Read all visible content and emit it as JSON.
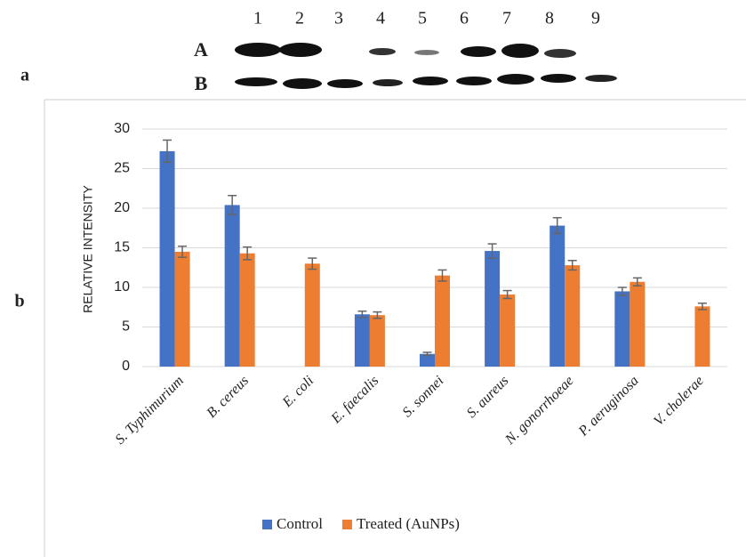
{
  "figure": {
    "panel_labels": [
      "a",
      "b"
    ],
    "lanes": [
      "1",
      "2",
      "3",
      "4",
      "5",
      "6",
      "7",
      "8",
      "9"
    ],
    "rows": [
      "A",
      "B"
    ]
  },
  "chart_data": {
    "type": "bar",
    "y_label": "RELATIVE INTENSITY",
    "categories": [
      "S. Typhimurium",
      "B. cereus",
      "E. coli",
      "E. faecalis",
      "S. sonnei",
      "S. aureus",
      "N. gonorrhoeae",
      "P. aeruginosa",
      "V. cholerae"
    ],
    "series": [
      {
        "name": "Control",
        "color": "#4472c4",
        "values": [
          27.2,
          20.4,
          null,
          6.6,
          1.6,
          14.6,
          17.8,
          9.5,
          null
        ],
        "errors": [
          1.4,
          1.2,
          null,
          0.4,
          0.2,
          0.9,
          1.0,
          0.5,
          null
        ]
      },
      {
        "name": "Treated (AuNPs)",
        "color": "#ed7d31",
        "values": [
          14.5,
          14.3,
          13.0,
          6.5,
          11.5,
          9.1,
          12.8,
          10.7,
          7.6
        ],
        "errors": [
          0.7,
          0.8,
          0.7,
          0.4,
          0.7,
          0.5,
          0.6,
          0.5,
          0.4
        ]
      }
    ],
    "ylim": [
      0,
      30
    ],
    "yticks": [
      0,
      5,
      10,
      15,
      20,
      25,
      30
    ],
    "grid": true,
    "legend": "bottom"
  }
}
